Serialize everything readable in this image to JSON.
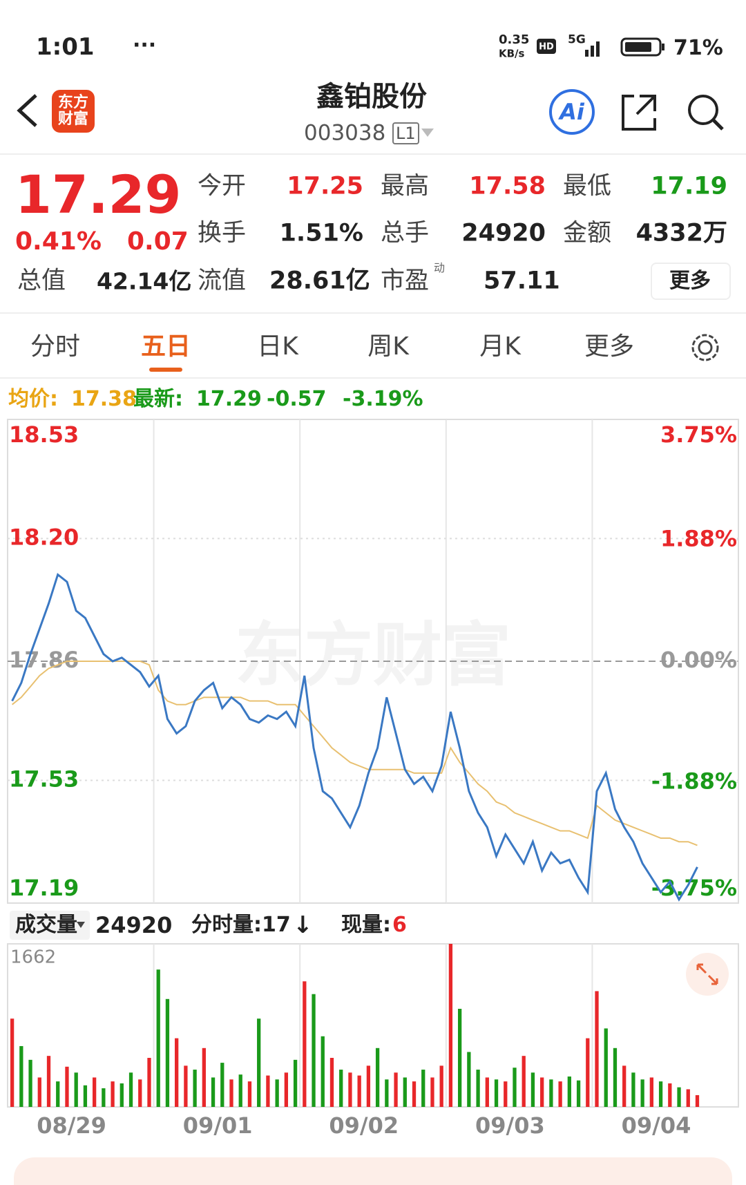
{
  "status": {
    "time": "1:01",
    "speed": "0.35",
    "speed_unit": "KB/s",
    "network": "5G",
    "battery": "71%"
  },
  "header": {
    "logo": "东方财富",
    "title": "鑫铂股份",
    "code": "003038",
    "level": "L1"
  },
  "quote": {
    "price": "17.29",
    "change_pct": "0.41%",
    "change": "0.07",
    "open_label": "今开",
    "open": "17.25",
    "high_label": "最高",
    "high": "17.58",
    "low_label": "最低",
    "low": "17.19",
    "turnover_label": "换手",
    "turnover": "1.51%",
    "volume_label": "总手",
    "volume": "24920",
    "amount_label": "金额",
    "amount": "4332万",
    "mktcap_label": "总值",
    "mktcap": "42.14亿",
    "float_label": "流值",
    "float": "28.61亿",
    "pe_label": "市盈",
    "pe_sup": "动",
    "pe": "57.11",
    "more": "更多"
  },
  "tabs": {
    "items": [
      "分时",
      "五日",
      "日K",
      "周K",
      "月K",
      "更多"
    ],
    "active": 1
  },
  "info_bar": {
    "avg_label": "均价:",
    "avg": "17.38",
    "latest_label": "最新:",
    "latest": "17.29",
    "change": "-0.57",
    "change_pct": "-3.19%"
  },
  "watermark": "东方财富",
  "volume_bar": {
    "label": "成交量",
    "value": "24920",
    "minute_label": "分时量:17",
    "arrow": "↓",
    "current_label": "现量:",
    "current": "6"
  },
  "chart_data": [
    {
      "type": "line",
      "categories": [
        null,
        null,
        null,
        null,
        null,
        null,
        null,
        "08/29",
        null,
        null,
        null,
        null,
        null,
        null,
        null,
        null,
        null,
        null,
        null,
        null,
        null,
        null,
        null,
        "09/01",
        null,
        null,
        null,
        null,
        null,
        null,
        null,
        null,
        null,
        null,
        null,
        null,
        null,
        null,
        null,
        "09/02",
        null,
        null,
        null,
        null,
        null,
        null,
        null,
        null,
        null,
        null,
        null,
        null,
        null,
        null,
        null,
        "09/03",
        null,
        null,
        null,
        null,
        null,
        null,
        null,
        null,
        null,
        null,
        null,
        null,
        null,
        null,
        null,
        "09/04",
        null,
        null,
        null,
        null,
        null,
        null,
        null,
        null
      ],
      "series": [
        {
          "color": "#3a78c3",
          "values": [
            17.75,
            17.8,
            17.88,
            17.95,
            18.02,
            18.1,
            18.08,
            18.0,
            17.98,
            17.93,
            17.88,
            17.86,
            17.87,
            17.85,
            17.83,
            17.79,
            17.82,
            17.7,
            17.66,
            17.68,
            17.75,
            17.78,
            17.8,
            17.73,
            17.76,
            17.74,
            17.7,
            17.69,
            17.71,
            17.7,
            17.72,
            17.68,
            17.82,
            17.62,
            17.5,
            17.48,
            17.44,
            17.4,
            17.46,
            17.55,
            17.62,
            17.76,
            17.66,
            17.56,
            17.52,
            17.54,
            17.5,
            17.57,
            17.72,
            17.62,
            17.5,
            17.44,
            17.4,
            17.32,
            17.38,
            17.34,
            17.3,
            17.36,
            17.28,
            17.33,
            17.3,
            17.31,
            17.26,
            17.22,
            17.5,
            17.55,
            17.45,
            17.4,
            17.36,
            17.3,
            17.26,
            17.22,
            17.25,
            17.2,
            17.24,
            17.29,
            null,
            null,
            null,
            null
          ]
        },
        {
          "color": "#e8c070",
          "values": [
            17.74,
            17.76,
            17.79,
            17.82,
            17.84,
            17.85,
            17.86,
            17.86,
            17.86,
            17.86,
            17.86,
            17.86,
            17.86,
            17.86,
            17.86,
            17.85,
            17.78,
            17.75,
            17.74,
            17.74,
            17.75,
            17.76,
            17.76,
            17.76,
            17.76,
            17.76,
            17.75,
            17.75,
            17.75,
            17.74,
            17.74,
            17.74,
            17.71,
            17.68,
            17.65,
            17.62,
            17.6,
            17.58,
            17.57,
            17.56,
            17.56,
            17.56,
            17.56,
            17.56,
            17.55,
            17.55,
            17.55,
            17.55,
            17.62,
            17.58,
            17.55,
            17.52,
            17.5,
            17.47,
            17.46,
            17.44,
            17.43,
            17.42,
            17.41,
            17.4,
            17.39,
            17.39,
            17.38,
            17.37,
            17.46,
            17.44,
            17.42,
            17.41,
            17.4,
            17.39,
            17.38,
            17.37,
            17.37,
            17.36,
            17.36,
            17.35,
            null,
            null,
            null,
            null
          ]
        }
      ],
      "ylim": [
        17.19,
        18.53
      ],
      "yticks": [
        {
          "value": 18.53,
          "label": "18.53"
        },
        {
          "value": 18.2,
          "label": "18.20"
        },
        {
          "value": 17.86,
          "label": "17.86"
        },
        {
          "value": 17.53,
          "label": "17.53"
        },
        {
          "value": 17.19,
          "label": "17.19"
        }
      ],
      "ytick_colors": [
        "#e8272a",
        "#e8272a",
        "#999999",
        "#1a9a1a",
        "#1a9a1a"
      ],
      "y2lim": [
        -3.75,
        3.75
      ],
      "y2ticks": [
        {
          "value": 3.75,
          "label": "3.75%"
        },
        {
          "value": 1.88,
          "label": "1.88%"
        },
        {
          "value": 0,
          "label": "0.00%"
        },
        {
          "value": -1.88,
          "label": "-1.88%"
        },
        {
          "value": -3.75,
          "label": "-3.75%"
        }
      ],
      "grid": true
    },
    {
      "type": "bar",
      "values": [
        900,
        620,
        480,
        300,
        520,
        260,
        410,
        350,
        220,
        300,
        190,
        260,
        240,
        350,
        280,
        500,
        1400,
        1100,
        700,
        420,
        380,
        600,
        300,
        450,
        280,
        330,
        260,
        900,
        320,
        280,
        350,
        480,
        1280,
        1150,
        720,
        500,
        380,
        350,
        320,
        420,
        600,
        280,
        350,
        300,
        260,
        380,
        300,
        420,
        1662,
        1000,
        560,
        380,
        300,
        280,
        260,
        400,
        520,
        350,
        300,
        280,
        260,
        310,
        270,
        700,
        1180,
        800,
        600,
        420,
        350,
        280,
        300,
        260,
        240,
        200,
        180,
        120,
        null,
        null,
        null,
        null
      ],
      "colors": [
        "#e8272a",
        "#1a9a1a",
        "#1a9a1a",
        "#e8272a",
        "#e8272a",
        "#1a9a1a",
        "#e8272a",
        "#1a9a1a",
        "#1a9a1a",
        "#e8272a",
        "#1a9a1a",
        "#e8272a",
        "#1a9a1a",
        "#1a9a1a",
        "#e8272a",
        "#e8272a",
        "#1a9a1a",
        "#1a9a1a",
        "#e8272a",
        "#e8272a",
        "#1a9a1a",
        "#e8272a",
        "#1a9a1a",
        "#1a9a1a",
        "#e8272a",
        "#1a9a1a",
        "#e8272a",
        "#1a9a1a",
        "#e8272a",
        "#1a9a1a",
        "#e8272a",
        "#1a9a1a",
        "#e8272a",
        "#1a9a1a",
        "#1a9a1a",
        "#e8272a",
        "#1a9a1a",
        "#e8272a",
        "#e8272a",
        "#e8272a",
        "#1a9a1a",
        "#1a9a1a",
        "#e8272a",
        "#1a9a1a",
        "#e8272a",
        "#1a9a1a",
        "#e8272a",
        "#e8272a",
        "#e8272a",
        "#1a9a1a",
        "#1a9a1a",
        "#1a9a1a",
        "#e8272a",
        "#1a9a1a",
        "#e8272a",
        "#1a9a1a",
        "#e8272a",
        "#1a9a1a",
        "#e8272a",
        "#1a9a1a",
        "#e8272a",
        "#1a9a1a",
        "#1a9a1a",
        "#e8272a",
        "#e8272a",
        "#1a9a1a",
        "#1a9a1a",
        "#e8272a",
        "#1a9a1a",
        "#1a9a1a",
        "#e8272a",
        "#1a9a1a",
        "#e8272a",
        "#1a9a1a",
        "#e8272a",
        "#e8272a",
        null,
        null,
        null,
        null
      ],
      "ylim": [
        0,
        1662
      ],
      "yticks": [
        1662
      ]
    }
  ]
}
